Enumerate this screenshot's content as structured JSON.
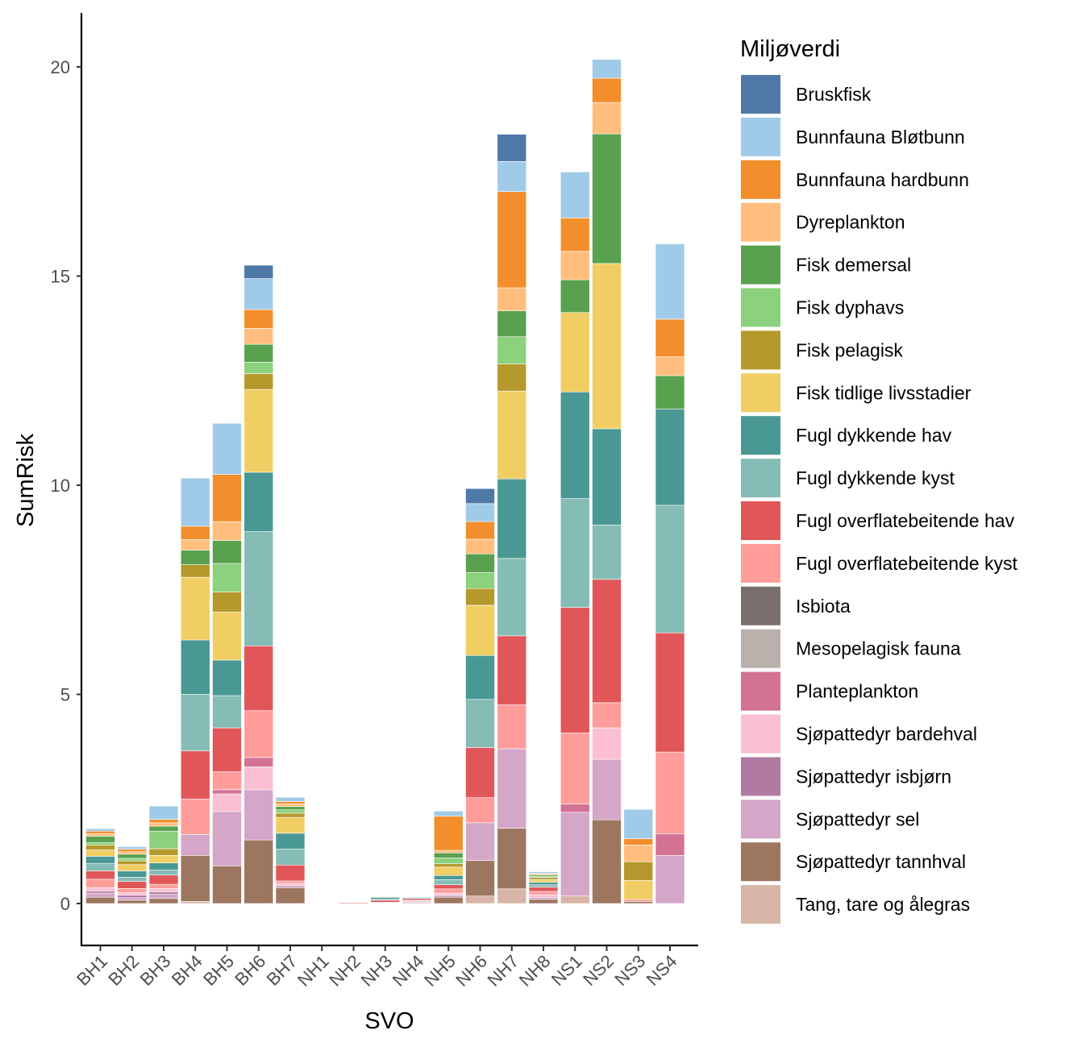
{
  "chart_data": {
    "type": "bar",
    "stacked": true,
    "xlabel": "SVO",
    "ylabel": "SumRisk",
    "ylim": [
      -1,
      21
    ],
    "yticks": [
      0,
      5,
      10,
      15,
      20
    ],
    "grid": false,
    "legend_title": "Miljøverdi",
    "legend_position": "right",
    "categories": [
      "BH1",
      "BH2",
      "BH3",
      "BH4",
      "BH5",
      "BH6",
      "BH7",
      "NH1",
      "NH2",
      "NH3",
      "NH4",
      "NH5",
      "NH6",
      "NH7",
      "NH8",
      "NS1",
      "NS2",
      "NS3",
      "NS4"
    ],
    "series": [
      {
        "name": "Tang, tare og ålegras",
        "color": "#D7B5A6",
        "values": [
          0,
          0,
          0,
          0.05,
          0,
          0,
          0,
          0,
          0,
          0,
          0,
          0,
          0.18,
          0.35,
          0,
          0.18,
          0,
          0,
          0
        ]
      },
      {
        "name": "Sjøpattedyr tannhval",
        "color": "#9D7660",
        "values": [
          0.15,
          0.08,
          0.12,
          1.1,
          0.9,
          1.52,
          0.38,
          0,
          0,
          0.01,
          0.02,
          0.15,
          0.85,
          1.45,
          0.1,
          0,
          2.0,
          0.05,
          0
        ]
      },
      {
        "name": "Sjøpattedyr sel",
        "color": "#D4A6C8",
        "values": [
          0.1,
          0.06,
          0.1,
          0.5,
          1.3,
          1.2,
          0.05,
          0,
          0,
          0.01,
          0.02,
          0.05,
          0.9,
          1.9,
          0.05,
          2.0,
          1.45,
          0,
          1.15
        ]
      },
      {
        "name": "Sjøpattedyr isbjørn",
        "color": "#B07AA1",
        "values": [
          0.05,
          0.06,
          0.06,
          0,
          0,
          0,
          0,
          0,
          0,
          0,
          0.02,
          0,
          0,
          0,
          0,
          0,
          0,
          0,
          0
        ]
      },
      {
        "name": "Sjøpattedyr bardehval",
        "color": "#FABFD2",
        "values": [
          0.08,
          0.06,
          0.08,
          0,
          0.42,
          0.55,
          0.05,
          0,
          0,
          0,
          0,
          0.05,
          0,
          0,
          0.06,
          0,
          0.75,
          0,
          0
        ]
      },
      {
        "name": "Planteplankton",
        "color": "#D37295",
        "values": [
          0,
          0,
          0,
          0,
          0.1,
          0.22,
          0,
          0,
          0,
          0,
          0,
          0,
          0,
          0,
          0,
          0.2,
          0,
          0,
          0.52
        ]
      },
      {
        "name": "Mesopelagisk fauna",
        "color": "#BAB0AC",
        "values": [
          0,
          0,
          0,
          0,
          0,
          0,
          0,
          0,
          0,
          0,
          0,
          0,
          0,
          0,
          0,
          0,
          0,
          0,
          0
        ]
      },
      {
        "name": "Isbiota",
        "color": "#79706E",
        "values": [
          0,
          0,
          0,
          0,
          0,
          0,
          0,
          0,
          0,
          0,
          0,
          0,
          0,
          0,
          0,
          0,
          0,
          0,
          0
        ]
      },
      {
        "name": "Fugl overflatebeitende kyst",
        "color": "#FF9D9A",
        "values": [
          0.2,
          0.1,
          0.1,
          0.85,
          0.43,
          1.12,
          0.06,
          0,
          0,
          0.01,
          0.02,
          0.1,
          0.6,
          1.05,
          0.08,
          1.7,
          0.6,
          0.05,
          1.95
        ]
      },
      {
        "name": "Fugl overflatebeitende hav",
        "color": "#E15759",
        "values": [
          0.2,
          0.17,
          0.22,
          1.15,
          1.05,
          1.55,
          0.38,
          0,
          0.02,
          0.05,
          0.04,
          0.1,
          1.2,
          1.65,
          0.1,
          3.0,
          2.95,
          0,
          2.85
        ]
      },
      {
        "name": "Fugl dykkende kyst",
        "color": "#86BCB6",
        "values": [
          0.18,
          0.1,
          0.12,
          1.35,
          0.77,
          2.73,
          0.38,
          0,
          0,
          0.02,
          0.02,
          0.12,
          1.15,
          1.85,
          0.06,
          2.6,
          1.3,
          0,
          3.05
        ]
      },
      {
        "name": "Fugl dykkende hav",
        "color": "#499894",
        "values": [
          0.17,
          0.15,
          0.17,
          1.3,
          0.85,
          1.42,
          0.38,
          0,
          0,
          0.04,
          0,
          0.1,
          1.05,
          1.9,
          0.06,
          2.55,
          2.3,
          0,
          2.3
        ]
      },
      {
        "name": "Fisk tidlige livsstadier",
        "color": "#F1CE63",
        "values": [
          0.15,
          0.15,
          0.18,
          1.5,
          1.15,
          1.98,
          0.38,
          0,
          0,
          0,
          0,
          0.2,
          1.2,
          2.1,
          0.06,
          1.9,
          3.95,
          0.45,
          0
        ]
      },
      {
        "name": "Fisk pelagisk",
        "color": "#B6992D",
        "values": [
          0.12,
          0.09,
          0.16,
          0.3,
          0.48,
          0.38,
          0.1,
          0,
          0,
          0,
          0,
          0.08,
          0.4,
          0.65,
          0.05,
          0,
          0,
          0.45,
          0
        ]
      },
      {
        "name": "Fisk dyphavs",
        "color": "#8CD17D",
        "values": [
          0.06,
          0.06,
          0.42,
          0,
          0.68,
          0.27,
          0.08,
          0,
          0,
          0,
          0,
          0.14,
          0.38,
          0.65,
          0.03,
          0,
          0,
          0,
          0
        ]
      },
      {
        "name": "Fisk demersal",
        "color": "#59A14F",
        "values": [
          0.15,
          0.1,
          0.12,
          0.35,
          0.55,
          0.43,
          0.08,
          0,
          0,
          0.02,
          0,
          0.12,
          0.45,
          0.62,
          0.03,
          0.78,
          3.1,
          0,
          0.8
        ]
      },
      {
        "name": "Dyreplankton",
        "color": "#FFBE7D",
        "values": [
          0.06,
          0.06,
          0.08,
          0.25,
          0.45,
          0.38,
          0.06,
          0,
          0,
          0,
          0,
          0.06,
          0.35,
          0.55,
          0.02,
          0.68,
          0.75,
          0.4,
          0.45
        ]
      },
      {
        "name": "Bunnfauna hardbunn",
        "color": "#F28E2B",
        "values": [
          0.06,
          0.06,
          0.08,
          0.32,
          1.13,
          0.45,
          0.06,
          0,
          0,
          0,
          0,
          0.82,
          0.42,
          2.3,
          0.02,
          0.8,
          0.58,
          0.15,
          0.9
        ]
      },
      {
        "name": "Bunnfauna Bløtbunn",
        "color": "#A0CBE8",
        "values": [
          0.06,
          0.06,
          0.32,
          1.15,
          1.22,
          0.74,
          0.1,
          0,
          0,
          0.01,
          0.02,
          0.12,
          0.43,
          0.72,
          0.04,
          1.1,
          0.45,
          0.7,
          1.8
        ]
      },
      {
        "name": "Bruskfisk",
        "color": "#4E79A7",
        "values": [
          0,
          0,
          0,
          0,
          0,
          0.32,
          0,
          0,
          0,
          0,
          0,
          0,
          0.36,
          0.65,
          0,
          0,
          0,
          0,
          0
        ]
      }
    ]
  }
}
